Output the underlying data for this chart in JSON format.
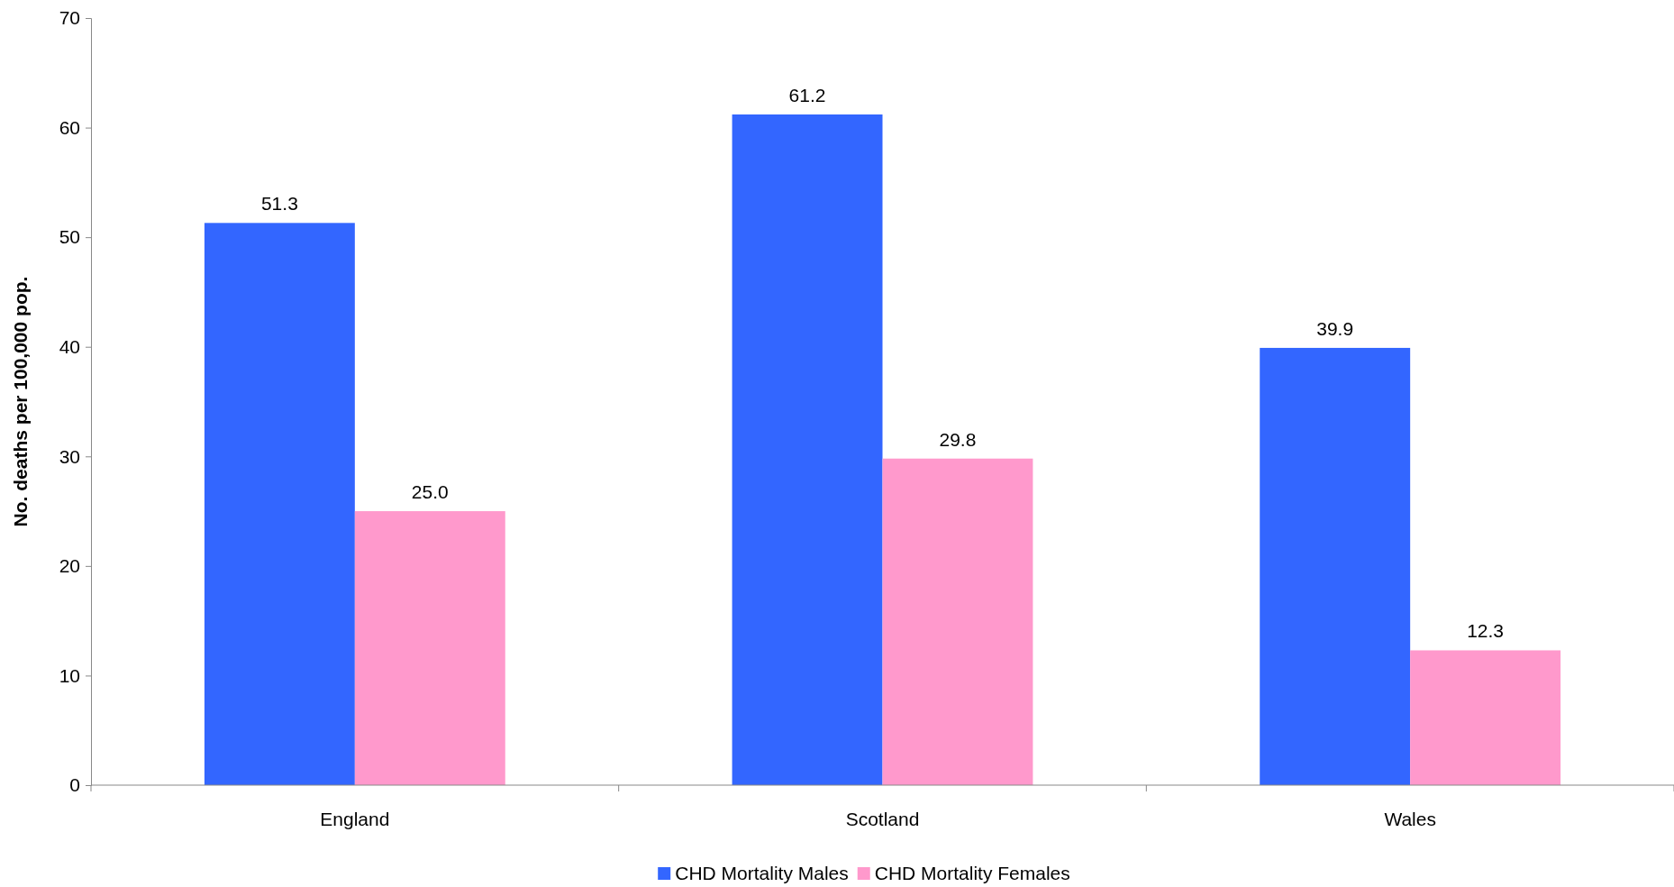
{
  "chart_data": {
    "type": "bar",
    "ylabel": "No. deaths per 100,000 pop.",
    "categories": [
      "England",
      "Scotland",
      "Wales"
    ],
    "series": [
      {
        "name": "CHD Mortality Males",
        "color": "#3366ff",
        "values": [
          51.3,
          61.2,
          39.9
        ],
        "value_labels": [
          "51.3",
          "61.2",
          "39.9"
        ]
      },
      {
        "name": "CHD Mortality Females",
        "color": "#ff99cc",
        "values": [
          25.0,
          29.8,
          12.3
        ],
        "value_labels": [
          "25.0",
          "29.8",
          "12.3"
        ]
      }
    ],
    "ylim": [
      0,
      70
    ],
    "yticks": [
      0,
      10,
      20,
      30,
      40,
      50,
      60,
      70
    ],
    "grid": false,
    "legend": "bottom"
  }
}
